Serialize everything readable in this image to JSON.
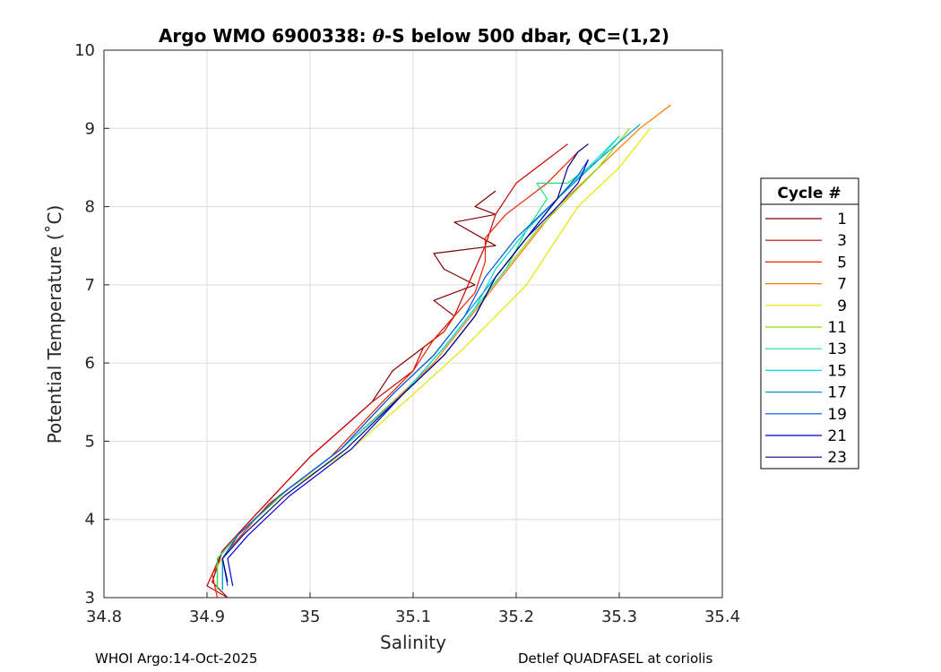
{
  "chart_data": {
    "type": "line",
    "title": "Argo WMO 6900338: θ-S below 500 dbar,  QC=(1,2)",
    "title_parts": {
      "before": "Argo WMO 6900338: ",
      "symbol": "θ",
      "after": "-S below 500 dbar,  QC=(1,2)"
    },
    "xlabel": "Salinity",
    "ylabel": "Potential Temperature (˚C)",
    "xlim": [
      34.8,
      35.4
    ],
    "ylim": [
      3,
      10
    ],
    "xticks": [
      34.8,
      34.9,
      35,
      35.1,
      35.2,
      35.3,
      35.4
    ],
    "xtick_labels": [
      "34.8",
      "34.9",
      "35",
      "35.1",
      "35.2",
      "35.3",
      "35.4"
    ],
    "yticks": [
      3,
      4,
      5,
      6,
      7,
      8,
      9,
      10
    ],
    "ytick_labels": [
      "3",
      "4",
      "5",
      "6",
      "7",
      "8",
      "9",
      "10"
    ],
    "grid": true,
    "legend": {
      "title": "Cycle #",
      "placement": "right-outside",
      "entries": [
        {
          "label": "1",
          "color": "#800000"
        },
        {
          "label": "3",
          "color": "#cc0000"
        },
        {
          "label": "5",
          "color": "#ee2200"
        },
        {
          "label": "7",
          "color": "#ff7700"
        },
        {
          "label": "9",
          "color": "#e6e600"
        },
        {
          "label": "11",
          "color": "#88dd00"
        },
        {
          "label": "13",
          "color": "#22dd88"
        },
        {
          "label": "15",
          "color": "#00dddd"
        },
        {
          "label": "17",
          "color": "#0099cc"
        },
        {
          "label": "19",
          "color": "#0055dd"
        },
        {
          "label": "21",
          "color": "#0000cc"
        },
        {
          "label": "23",
          "color": "#000080"
        }
      ]
    },
    "series": [
      {
        "name": "1",
        "color": "#800000",
        "points": [
          [
            34.92,
            3.0
          ],
          [
            34.905,
            3.2
          ],
          [
            34.915,
            3.6
          ],
          [
            34.95,
            4.1
          ],
          [
            35.0,
            4.8
          ],
          [
            35.06,
            5.5
          ],
          [
            35.08,
            5.9
          ],
          [
            35.09,
            6.0
          ],
          [
            35.12,
            6.3
          ],
          [
            35.14,
            6.6
          ],
          [
            35.12,
            6.8
          ],
          [
            35.16,
            7.0
          ],
          [
            35.13,
            7.2
          ],
          [
            35.12,
            7.4
          ],
          [
            35.18,
            7.5
          ],
          [
            35.14,
            7.8
          ],
          [
            35.18,
            7.9
          ],
          [
            35.16,
            8.0
          ],
          [
            35.18,
            8.2
          ]
        ]
      },
      {
        "name": "3",
        "color": "#cc0000",
        "points": [
          [
            34.92,
            3.0
          ],
          [
            34.9,
            3.15
          ],
          [
            34.915,
            3.6
          ],
          [
            34.95,
            4.1
          ],
          [
            35.0,
            4.8
          ],
          [
            35.06,
            5.5
          ],
          [
            35.1,
            5.9
          ],
          [
            35.11,
            6.2
          ],
          [
            35.13,
            6.4
          ],
          [
            35.14,
            6.6
          ],
          [
            35.15,
            6.9
          ],
          [
            35.16,
            7.2
          ],
          [
            35.17,
            7.5
          ],
          [
            35.18,
            7.9
          ],
          [
            35.2,
            8.3
          ],
          [
            35.22,
            8.5
          ],
          [
            35.25,
            8.8
          ]
        ]
      },
      {
        "name": "5",
        "color": "#ee2200",
        "points": [
          [
            34.91,
            3.0
          ],
          [
            34.905,
            3.3
          ],
          [
            34.92,
            3.6
          ],
          [
            34.96,
            4.2
          ],
          [
            35.02,
            4.8
          ],
          [
            35.07,
            5.5
          ],
          [
            35.1,
            5.9
          ],
          [
            35.12,
            6.3
          ],
          [
            35.14,
            6.6
          ],
          [
            35.16,
            6.9
          ],
          [
            35.17,
            7.3
          ],
          [
            35.17,
            7.6
          ],
          [
            35.19,
            7.9
          ],
          [
            35.23,
            8.3
          ],
          [
            35.26,
            8.7
          ]
        ]
      },
      {
        "name": "7",
        "color": "#ff7700",
        "points": [
          [
            34.91,
            3.1
          ],
          [
            34.91,
            3.4
          ],
          [
            34.93,
            3.8
          ],
          [
            34.98,
            4.4
          ],
          [
            35.03,
            4.9
          ],
          [
            35.08,
            5.5
          ],
          [
            35.12,
            6.0
          ],
          [
            35.15,
            6.5
          ],
          [
            35.18,
            7.0
          ],
          [
            35.21,
            7.5
          ],
          [
            35.24,
            8.0
          ],
          [
            35.28,
            8.5
          ],
          [
            35.32,
            9.0
          ],
          [
            35.35,
            9.3
          ]
        ]
      },
      {
        "name": "9",
        "color": "#e6e600",
        "points": [
          [
            34.91,
            3.1
          ],
          [
            34.91,
            3.4
          ],
          [
            34.93,
            3.8
          ],
          [
            34.98,
            4.4
          ],
          [
            35.04,
            4.9
          ],
          [
            35.1,
            5.6
          ],
          [
            35.15,
            6.2
          ],
          [
            35.18,
            6.6
          ],
          [
            35.21,
            7.0
          ],
          [
            35.24,
            7.6
          ],
          [
            35.26,
            8.0
          ],
          [
            35.3,
            8.5
          ],
          [
            35.33,
            9.0
          ]
        ]
      },
      {
        "name": "11",
        "color": "#88dd00",
        "points": [
          [
            34.91,
            3.1
          ],
          [
            34.91,
            3.5
          ],
          [
            34.93,
            3.8
          ],
          [
            34.98,
            4.4
          ],
          [
            35.03,
            4.9
          ],
          [
            35.09,
            5.6
          ],
          [
            35.13,
            6.2
          ],
          [
            35.16,
            6.7
          ],
          [
            35.19,
            7.2
          ],
          [
            35.22,
            7.7
          ],
          [
            35.25,
            8.1
          ],
          [
            35.28,
            8.5
          ],
          [
            35.31,
            9.0
          ]
        ]
      },
      {
        "name": "13",
        "color": "#22dd88",
        "points": [
          [
            34.91,
            3.1
          ],
          [
            34.91,
            3.5
          ],
          [
            34.93,
            3.8
          ],
          [
            34.97,
            4.3
          ],
          [
            35.03,
            4.9
          ],
          [
            35.09,
            5.6
          ],
          [
            35.13,
            6.2
          ],
          [
            35.16,
            6.7
          ],
          [
            35.19,
            7.2
          ],
          [
            35.21,
            7.7
          ],
          [
            35.23,
            8.1
          ],
          [
            35.22,
            8.3
          ],
          [
            35.25,
            8.3
          ],
          [
            35.28,
            8.6
          ],
          [
            35.3,
            8.9
          ]
        ]
      },
      {
        "name": "15",
        "color": "#00dddd",
        "points": [
          [
            34.915,
            3.1
          ],
          [
            34.915,
            3.5
          ],
          [
            34.93,
            3.8
          ],
          [
            34.97,
            4.3
          ],
          [
            35.03,
            4.9
          ],
          [
            35.09,
            5.6
          ],
          [
            35.13,
            6.2
          ],
          [
            35.16,
            6.7
          ],
          [
            35.18,
            7.2
          ],
          [
            35.21,
            7.7
          ],
          [
            35.24,
            8.1
          ],
          [
            35.27,
            8.5
          ],
          [
            35.3,
            8.9
          ]
        ]
      },
      {
        "name": "17",
        "color": "#0099cc",
        "points": [
          [
            34.915,
            3.1
          ],
          [
            34.915,
            3.5
          ],
          [
            34.93,
            3.8
          ],
          [
            34.97,
            4.3
          ],
          [
            35.03,
            4.9
          ],
          [
            35.08,
            5.6
          ],
          [
            35.12,
            6.1
          ],
          [
            35.15,
            6.6
          ],
          [
            35.18,
            7.1
          ],
          [
            35.21,
            7.6
          ],
          [
            35.24,
            8.1
          ],
          [
            35.28,
            8.6
          ],
          [
            35.32,
            9.05
          ]
        ]
      },
      {
        "name": "19",
        "color": "#0055dd",
        "points": [
          [
            34.92,
            3.15
          ],
          [
            34.915,
            3.5
          ],
          [
            34.93,
            3.8
          ],
          [
            34.97,
            4.3
          ],
          [
            35.03,
            4.9
          ],
          [
            35.08,
            5.6
          ],
          [
            35.12,
            6.1
          ],
          [
            35.15,
            6.6
          ],
          [
            35.17,
            7.1
          ],
          [
            35.2,
            7.6
          ],
          [
            35.24,
            8.1
          ],
          [
            35.26,
            8.4
          ],
          [
            35.27,
            8.6
          ]
        ]
      },
      {
        "name": "21",
        "color": "#0000cc",
        "points": [
          [
            34.925,
            3.15
          ],
          [
            34.92,
            3.5
          ],
          [
            34.94,
            3.8
          ],
          [
            34.98,
            4.3
          ],
          [
            35.04,
            4.9
          ],
          [
            35.09,
            5.6
          ],
          [
            35.13,
            6.1
          ],
          [
            35.16,
            6.6
          ],
          [
            35.18,
            7.1
          ],
          [
            35.21,
            7.6
          ],
          [
            35.24,
            8.0
          ],
          [
            35.26,
            8.3
          ],
          [
            35.27,
            8.6
          ]
        ]
      },
      {
        "name": "23",
        "color": "#000080",
        "points": [
          [
            34.92,
            3.2
          ],
          [
            34.915,
            3.5
          ],
          [
            34.935,
            3.8
          ],
          [
            34.975,
            4.3
          ],
          [
            35.035,
            4.9
          ],
          [
            35.09,
            5.6
          ],
          [
            35.13,
            6.1
          ],
          [
            35.16,
            6.6
          ],
          [
            35.18,
            7.1
          ],
          [
            35.21,
            7.6
          ],
          [
            35.24,
            8.1
          ],
          [
            35.25,
            8.5
          ],
          [
            35.26,
            8.7
          ],
          [
            35.27,
            8.8
          ]
        ]
      }
    ]
  },
  "footer": {
    "left": "WHOI Argo:14-Oct-2025",
    "right": "Detlef QUADFASEL at coriolis"
  }
}
